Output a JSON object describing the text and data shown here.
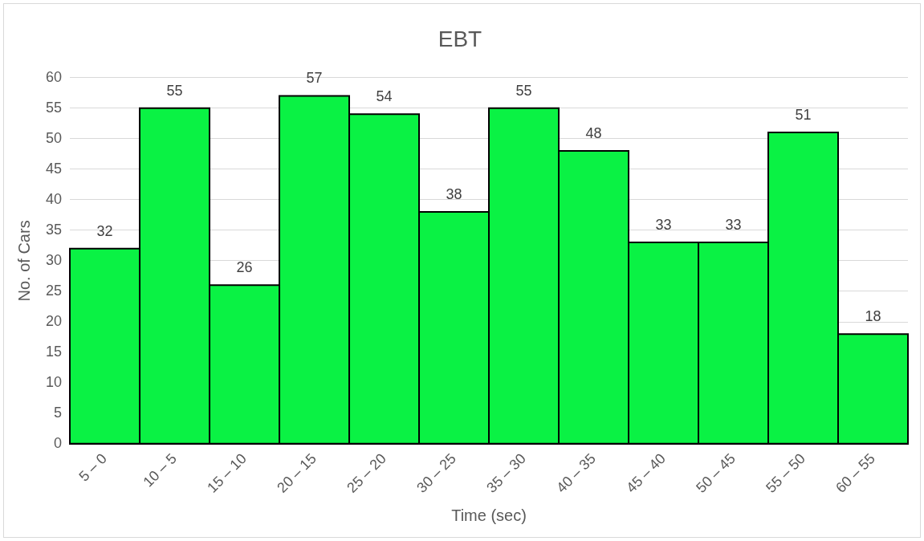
{
  "chart_data": {
    "type": "bar",
    "title": "EBT",
    "xlabel": "Time (sec)",
    "ylabel": "No. of Cars",
    "categories": [
      "5 – 0",
      "10 – 5",
      "15 – 10",
      "20 – 15",
      "25 – 20",
      "30 – 25",
      "35 – 30",
      "40 – 35",
      "45 – 40",
      "50 – 45",
      "55 – 50",
      "60 – 55"
    ],
    "values": [
      32,
      55,
      26,
      57,
      54,
      38,
      55,
      48,
      33,
      33,
      51,
      18
    ],
    "color": "#0af244",
    "ylim": [
      0,
      60
    ],
    "yticks": [
      0,
      5,
      10,
      15,
      20,
      25,
      30,
      35,
      40,
      45,
      50,
      55,
      60
    ],
    "grid": "y",
    "data_labels": true
  }
}
